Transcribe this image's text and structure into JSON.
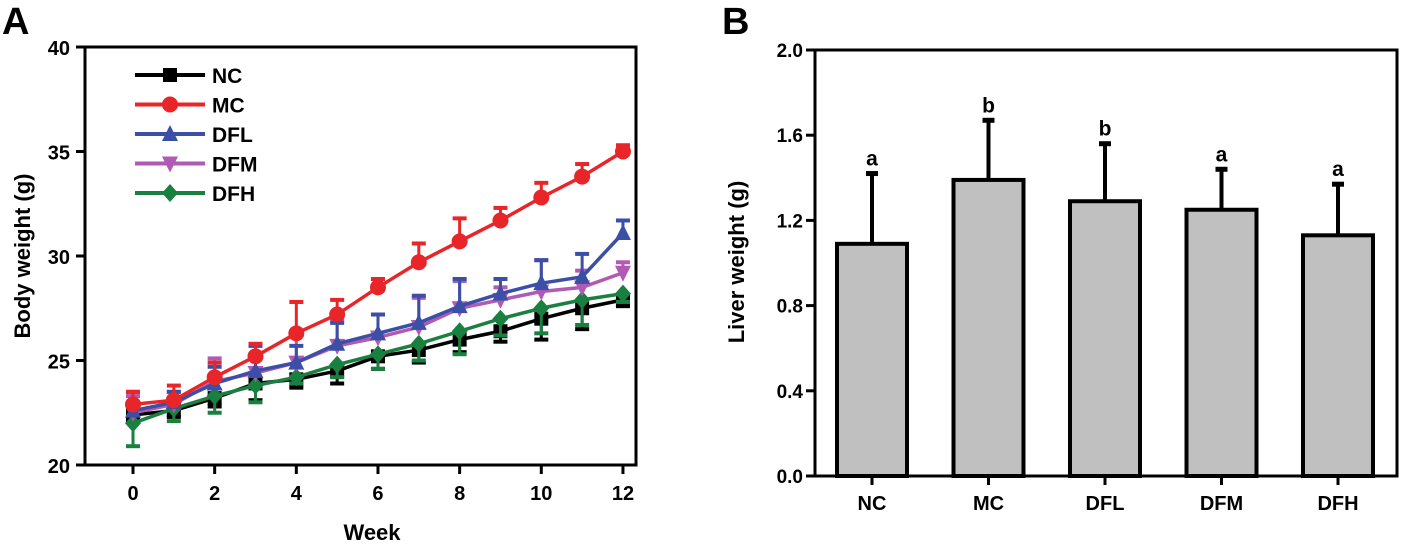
{
  "chart_data": [
    {
      "panel": "A",
      "type": "line",
      "xlabel": "Week",
      "ylabel": "Body weight (g)",
      "xlim": [
        -0.7,
        13.5
      ],
      "ylim": [
        20,
        40
      ],
      "xticks": [
        0,
        2,
        4,
        6,
        8,
        10,
        12
      ],
      "yticks": [
        20,
        25,
        30,
        35,
        40
      ],
      "x": [
        0,
        1,
        2,
        3,
        4,
        5,
        6,
        7,
        8,
        9,
        10,
        11,
        12
      ],
      "legend_position": "top-left",
      "series": [
        {
          "name": "NC",
          "color": "#000000",
          "marker": "square",
          "err_dir": "down",
          "values": [
            22.4,
            22.6,
            23.2,
            23.9,
            24.1,
            24.5,
            25.2,
            25.5,
            26.0,
            26.4,
            27.0,
            27.5,
            27.9
          ],
          "errors": [
            0.3,
            0.3,
            0.4,
            0.8,
            0.4,
            0.6,
            0.6,
            0.6,
            0.6,
            0.5,
            1.0,
            1.0,
            0.3
          ]
        },
        {
          "name": "MC",
          "color": "#e8262a",
          "marker": "circle",
          "err_dir": "up",
          "values": [
            22.9,
            23.1,
            24.2,
            25.2,
            26.3,
            27.2,
            28.5,
            29.7,
            30.7,
            31.7,
            32.8,
            33.8,
            35.0
          ],
          "errors": [
            0.6,
            0.7,
            0.7,
            0.6,
            1.5,
            0.7,
            0.4,
            0.9,
            1.1,
            0.6,
            0.7,
            0.6,
            0.3
          ]
        },
        {
          "name": "DFL",
          "color": "#3a4fa5",
          "marker": "triangle",
          "err_dir": "up",
          "values": [
            22.6,
            23.0,
            23.9,
            24.5,
            24.9,
            25.8,
            26.3,
            26.8,
            27.6,
            28.2,
            28.7,
            29.0,
            31.1
          ],
          "errors": [
            0.9,
            0.5,
            0.8,
            1.2,
            0.8,
            1.0,
            0.9,
            1.3,
            1.3,
            0.7,
            1.1,
            1.1,
            0.6
          ]
        },
        {
          "name": "DFM",
          "color": "#b05ab5",
          "marker": "triangle-down",
          "err_dir": "up",
          "values": [
            22.5,
            22.9,
            24.0,
            24.4,
            24.9,
            25.7,
            26.1,
            26.6,
            27.5,
            27.9,
            28.3,
            28.5,
            29.2
          ],
          "errors": [
            0.8,
            0.6,
            1.1,
            0.9,
            1.4,
            1.2,
            1.1,
            1.4,
            1.3,
            0.6,
            1.5,
            0.8,
            0.5
          ]
        },
        {
          "name": "DFH",
          "color": "#1a8040",
          "marker": "diamond",
          "err_dir": "down",
          "values": [
            22.0,
            22.7,
            23.3,
            23.8,
            24.2,
            24.8,
            25.3,
            25.8,
            26.4,
            27.0,
            27.5,
            27.9,
            28.2
          ],
          "errors": [
            1.1,
            0.6,
            0.8,
            0.8,
            0.3,
            0.6,
            0.7,
            0.8,
            1.1,
            0.8,
            1.2,
            1.2,
            0.4
          ]
        }
      ]
    },
    {
      "panel": "B",
      "type": "bar",
      "xlabel": "",
      "ylabel": "Liver weight (g)",
      "ylim": [
        0,
        2.0
      ],
      "yticks": [
        "0.0",
        "0.4",
        "0.8",
        "1.2",
        "1.6",
        "2.0"
      ],
      "categories": [
        "NC",
        "MC",
        "DFL",
        "DFM",
        "DFH"
      ],
      "values": [
        1.09,
        1.39,
        1.29,
        1.25,
        1.13
      ],
      "errors": [
        0.33,
        0.28,
        0.27,
        0.19,
        0.24
      ],
      "annotations": [
        "a",
        "b",
        "b",
        "a",
        "a"
      ],
      "bar_color": "#c0c0c0"
    }
  ],
  "labels": {
    "panel_a": "A",
    "panel_b": "B"
  }
}
